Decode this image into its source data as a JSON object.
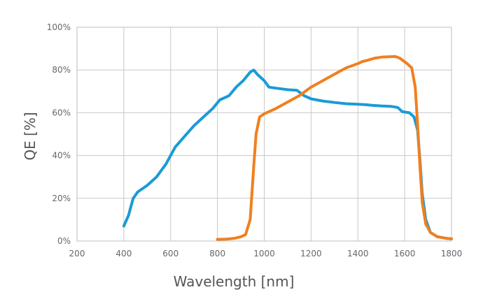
{
  "chart_data": {
    "type": "line",
    "xlabel": "Wavelength [nm]",
    "ylabel": "QE [%]",
    "xlim": [
      200,
      1800
    ],
    "ylim": [
      0,
      100
    ],
    "x_ticks": [
      "200",
      "400",
      "600",
      "800",
      "1000",
      "1200",
      "1400",
      "1600",
      "1800"
    ],
    "y_ticks": [
      "0%",
      "20%",
      "40%",
      "60%",
      "80%",
      "100%"
    ],
    "grid": true,
    "colors": {
      "series_a": "#1a9bd7",
      "series_b": "#f07f1f",
      "grid": "#c8c8c8",
      "text": "#666666"
    },
    "series": [
      {
        "color": "#1a9bd7",
        "points": [
          [
            400,
            7
          ],
          [
            420,
            12
          ],
          [
            440,
            20
          ],
          [
            460,
            23
          ],
          [
            500,
            26
          ],
          [
            540,
            30
          ],
          [
            580,
            36
          ],
          [
            620,
            44
          ],
          [
            660,
            49
          ],
          [
            700,
            54
          ],
          [
            740,
            58
          ],
          [
            780,
            62
          ],
          [
            810,
            66
          ],
          [
            850,
            68
          ],
          [
            880,
            72
          ],
          [
            910,
            75
          ],
          [
            940,
            79
          ],
          [
            955,
            80
          ],
          [
            970,
            78
          ],
          [
            1000,
            75
          ],
          [
            1020,
            72
          ],
          [
            1050,
            71.5
          ],
          [
            1100,
            70.8
          ],
          [
            1140,
            70.5
          ],
          [
            1170,
            68
          ],
          [
            1200,
            66.5
          ],
          [
            1250,
            65.5
          ],
          [
            1300,
            64.8
          ],
          [
            1350,
            64.2
          ],
          [
            1400,
            64
          ],
          [
            1430,
            63.8
          ],
          [
            1460,
            63.5
          ],
          [
            1500,
            63.2
          ],
          [
            1540,
            63
          ],
          [
            1570,
            62.5
          ],
          [
            1590,
            60.5
          ],
          [
            1620,
            60
          ],
          [
            1640,
            58
          ],
          [
            1655,
            52
          ],
          [
            1665,
            38
          ],
          [
            1675,
            22
          ],
          [
            1690,
            10
          ],
          [
            1710,
            4
          ],
          [
            1740,
            2
          ],
          [
            1780,
            1.2
          ],
          [
            1800,
            1
          ]
        ]
      },
      {
        "color": "#f07f1f",
        "points": [
          [
            800,
            0.8
          ],
          [
            840,
            0.9
          ],
          [
            870,
            1.2
          ],
          [
            900,
            2
          ],
          [
            920,
            3
          ],
          [
            940,
            10
          ],
          [
            955,
            35
          ],
          [
            965,
            50
          ],
          [
            980,
            58
          ],
          [
            1000,
            59.5
          ],
          [
            1050,
            62
          ],
          [
            1100,
            65
          ],
          [
            1150,
            68
          ],
          [
            1200,
            72
          ],
          [
            1250,
            75
          ],
          [
            1300,
            78
          ],
          [
            1350,
            81
          ],
          [
            1400,
            83
          ],
          [
            1420,
            84
          ],
          [
            1440,
            84.5
          ],
          [
            1470,
            85.5
          ],
          [
            1500,
            86
          ],
          [
            1530,
            86.2
          ],
          [
            1560,
            86.3
          ],
          [
            1580,
            85.5
          ],
          [
            1610,
            83
          ],
          [
            1630,
            81
          ],
          [
            1645,
            72
          ],
          [
            1655,
            55
          ],
          [
            1665,
            35
          ],
          [
            1675,
            18
          ],
          [
            1690,
            8
          ],
          [
            1710,
            4
          ],
          [
            1740,
            2
          ],
          [
            1780,
            1.2
          ],
          [
            1800,
            1
          ]
        ]
      }
    ]
  }
}
